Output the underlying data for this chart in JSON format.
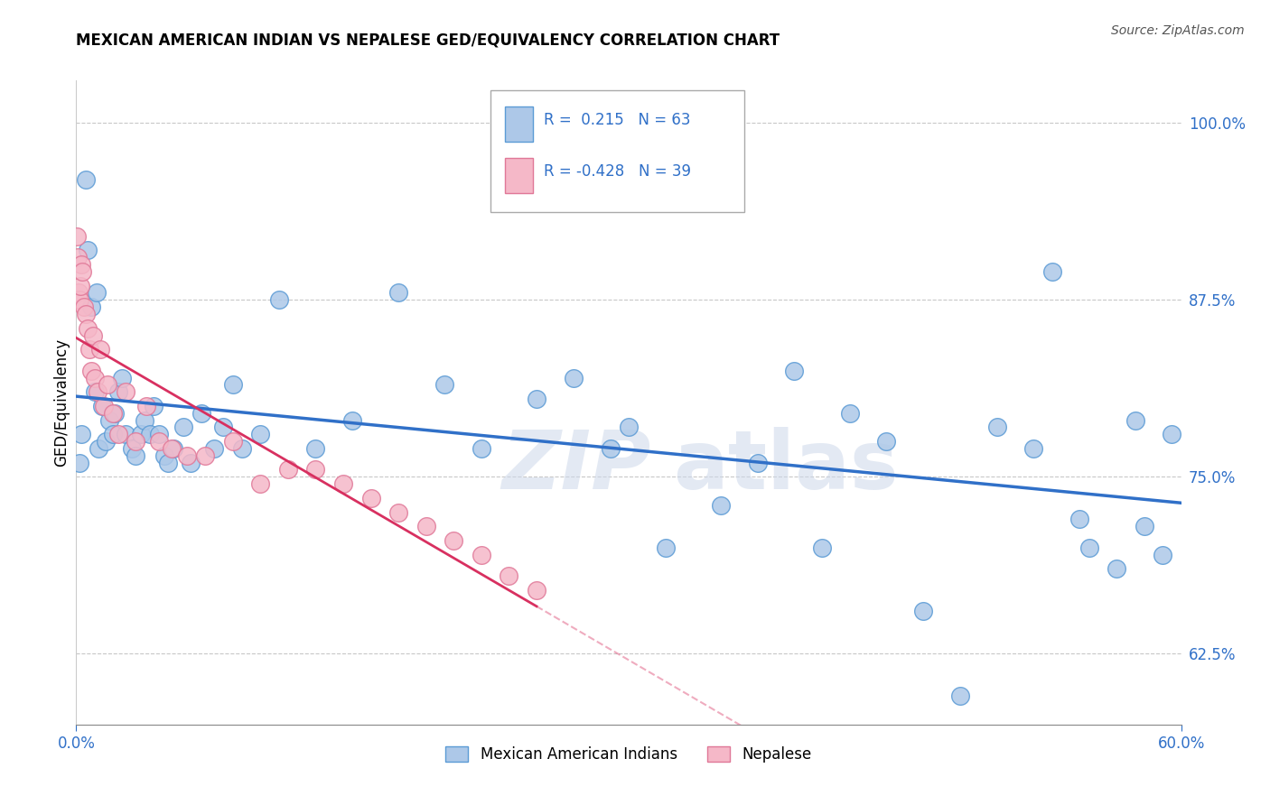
{
  "title": "MEXICAN AMERICAN INDIAN VS NEPALESE GED/EQUIVALENCY CORRELATION CHART",
  "source": "Source: ZipAtlas.com",
  "ylabel": "GED/Equivalency",
  "xlim": [
    0.0,
    60.0
  ],
  "ylim": [
    57.5,
    103.0
  ],
  "grid_yticks": [
    62.5,
    75.0,
    87.5,
    100.0
  ],
  "blue_R": 0.215,
  "blue_N": 63,
  "pink_R": -0.428,
  "pink_N": 39,
  "blue_color": "#adc8e8",
  "pink_color": "#f5b8c8",
  "blue_edge": "#5b9bd5",
  "pink_edge": "#e07898",
  "trend_blue": "#3070c8",
  "trend_pink": "#d83060",
  "blue_x": [
    0.2,
    0.3,
    0.5,
    0.6,
    0.8,
    1.0,
    1.1,
    1.2,
    1.4,
    1.6,
    1.8,
    2.0,
    2.1,
    2.3,
    2.5,
    2.7,
    3.0,
    3.2,
    3.5,
    3.7,
    4.0,
    4.2,
    4.5,
    4.8,
    5.0,
    5.3,
    5.8,
    6.2,
    6.8,
    7.5,
    8.0,
    8.5,
    9.0,
    10.0,
    11.0,
    13.0,
    15.0,
    17.5,
    20.0,
    22.0,
    25.0,
    27.0,
    29.0,
    30.0,
    32.0,
    35.0,
    37.0,
    39.0,
    40.5,
    42.0,
    44.0,
    46.0,
    48.0,
    50.0,
    52.0,
    53.0,
    54.5,
    55.0,
    56.5,
    57.5,
    58.0,
    59.0,
    59.5
  ],
  "blue_y": [
    76.0,
    78.0,
    96.0,
    91.0,
    87.0,
    81.0,
    88.0,
    77.0,
    80.0,
    77.5,
    79.0,
    78.0,
    79.5,
    81.0,
    82.0,
    78.0,
    77.0,
    76.5,
    78.0,
    79.0,
    78.0,
    80.0,
    78.0,
    76.5,
    76.0,
    77.0,
    78.5,
    76.0,
    79.5,
    77.0,
    78.5,
    81.5,
    77.0,
    78.0,
    87.5,
    77.0,
    79.0,
    88.0,
    81.5,
    77.0,
    80.5,
    82.0,
    77.0,
    78.5,
    70.0,
    73.0,
    76.0,
    82.5,
    70.0,
    79.5,
    77.5,
    65.5,
    59.5,
    78.5,
    77.0,
    89.5,
    72.0,
    70.0,
    68.5,
    79.0,
    71.5,
    69.5,
    78.0
  ],
  "pink_x": [
    0.05,
    0.1,
    0.15,
    0.2,
    0.25,
    0.3,
    0.35,
    0.4,
    0.5,
    0.6,
    0.7,
    0.8,
    0.9,
    1.0,
    1.15,
    1.3,
    1.5,
    1.7,
    2.0,
    2.3,
    2.7,
    3.2,
    3.8,
    4.5,
    5.2,
    6.0,
    7.0,
    8.5,
    10.0,
    11.5,
    13.0,
    14.5,
    16.0,
    17.5,
    19.0,
    20.5,
    22.0,
    23.5,
    25.0
  ],
  "pink_y": [
    92.0,
    90.5,
    88.0,
    87.5,
    88.5,
    90.0,
    89.5,
    87.0,
    86.5,
    85.5,
    84.0,
    82.5,
    85.0,
    82.0,
    81.0,
    84.0,
    80.0,
    81.5,
    79.5,
    78.0,
    81.0,
    77.5,
    80.0,
    77.5,
    77.0,
    76.5,
    76.5,
    77.5,
    74.5,
    75.5,
    75.5,
    74.5,
    73.5,
    72.5,
    71.5,
    70.5,
    69.5,
    68.0,
    67.0
  ],
  "watermark_line1": "ZIP",
  "watermark_line2": "atlas",
  "legend_labels": [
    "Mexican American Indians",
    "Nepalese"
  ],
  "grid_color": "#c8c8c8",
  "background_color": "#ffffff",
  "title_fontsize": 12,
  "axis_label_color": "#3070c8",
  "tick_color": "#3070c8"
}
